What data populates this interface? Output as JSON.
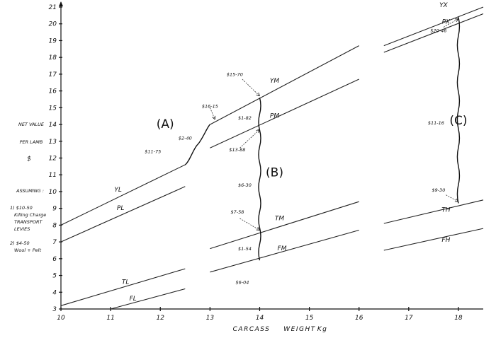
{
  "chart_data": {
    "type": "line",
    "xlabel_parts": [
      "CARCASS",
      "WEIGHT",
      "Kg"
    ],
    "ylabel_lines": [
      "NET VALUE",
      "PER LAMB",
      "$"
    ],
    "xlim": [
      10,
      18.5
    ],
    "ylim": [
      3,
      21
    ],
    "x_ticks": [
      10,
      11,
      12,
      13,
      14,
      15,
      16,
      17,
      18
    ],
    "y_ticks": [
      3,
      4,
      5,
      6,
      7,
      8,
      9,
      10,
      11,
      12,
      13,
      14,
      15,
      16,
      17,
      18,
      19,
      20,
      21
    ],
    "assumptions": {
      "heading": "ASSUMING :",
      "items": [
        [
          "1) $10-50",
          "Killing Charge",
          "TRANSPORT",
          "LEVIES"
        ],
        [
          "2) $4-50",
          "Wool + Pelt"
        ]
      ]
    },
    "series": [
      {
        "name": "YL",
        "x": [
          10,
          12.5
        ],
        "y": [
          8.0,
          11.6
        ]
      },
      {
        "name": "PL",
        "x": [
          10,
          12.5
        ],
        "y": [
          7.0,
          10.3
        ]
      },
      {
        "name": "TL",
        "x": [
          10,
          12.5
        ],
        "y": [
          3.2,
          5.4
        ]
      },
      {
        "name": "FL",
        "x": [
          11,
          12.5
        ],
        "y": [
          3.0,
          4.2
        ]
      },
      {
        "name": "YM",
        "x": [
          13,
          16
        ],
        "y": [
          14.0,
          18.7
        ]
      },
      {
        "name": "PM",
        "x": [
          13,
          16
        ],
        "y": [
          12.6,
          16.7
        ]
      },
      {
        "name": "TM",
        "x": [
          13,
          16
        ],
        "y": [
          6.6,
          9.4
        ]
      },
      {
        "name": "FM",
        "x": [
          13,
          16
        ],
        "y": [
          5.2,
          7.7
        ]
      },
      {
        "name": "YX",
        "x": [
          16.5,
          18.5
        ],
        "y": [
          18.7,
          21.0
        ]
      },
      {
        "name": "PX",
        "x": [
          16.5,
          18.5
        ],
        "y": [
          18.3,
          20.6
        ]
      },
      {
        "name": "TH",
        "x": [
          16.5,
          18.5
        ],
        "y": [
          8.1,
          9.5
        ]
      },
      {
        "name": "FH",
        "x": [
          16.5,
          18.5
        ],
        "y": [
          6.5,
          7.8
        ]
      }
    ],
    "series_label_positions": [
      {
        "name": "YL",
        "x": 11.15,
        "y": 10.0
      },
      {
        "name": "PL",
        "x": 11.2,
        "y": 8.9
      },
      {
        "name": "TL",
        "x": 11.3,
        "y": 4.5
      },
      {
        "name": "FL",
        "x": 11.45,
        "y": 3.5
      },
      {
        "name": "YM",
        "x": 14.3,
        "y": 16.5
      },
      {
        "name": "PM",
        "x": 14.3,
        "y": 14.4
      },
      {
        "name": "TM",
        "x": 14.4,
        "y": 8.3
      },
      {
        "name": "FM",
        "x": 14.45,
        "y": 6.5
      },
      {
        "name": "YX",
        "x": 17.7,
        "y": 21.0
      },
      {
        "name": "PX",
        "x": 17.75,
        "y": 20.0
      },
      {
        "name": "TH",
        "x": 17.75,
        "y": 8.8
      },
      {
        "name": "FH",
        "x": 17.75,
        "y": 7.0
      }
    ],
    "groups": [
      {
        "label": "(A)",
        "x": 12.1,
        "y": 13.8
      },
      {
        "label": "(B)",
        "x": 14.3,
        "y": 10.9
      },
      {
        "label": "(C)",
        "x": 18.0,
        "y": 14.0
      }
    ],
    "annotations": [
      {
        "text": "$16-15",
        "x": 13.0,
        "y": 15.0
      },
      {
        "text": "$15-70",
        "x": 13.5,
        "y": 16.9
      },
      {
        "text": "$1-82",
        "x": 13.7,
        "y": 14.3
      },
      {
        "text": "$2-40",
        "x": 12.5,
        "y": 13.1
      },
      {
        "text": "$11-75",
        "x": 11.85,
        "y": 12.3
      },
      {
        "text": "$13-88",
        "x": 13.55,
        "y": 12.4
      },
      {
        "text": "$6-30",
        "x": 13.7,
        "y": 10.3
      },
      {
        "text": "$7-58",
        "x": 13.55,
        "y": 8.7
      },
      {
        "text": "$1-54",
        "x": 13.7,
        "y": 6.5
      },
      {
        "text": "$6-04",
        "x": 13.65,
        "y": 4.5
      },
      {
        "text": "$20-46",
        "x": 17.6,
        "y": 19.5
      },
      {
        "text": "$11-16",
        "x": 17.55,
        "y": 14.0
      },
      {
        "text": "$9-30",
        "x": 17.6,
        "y": 10.0
      }
    ],
    "connectors": [
      {
        "from": [
          12.5,
          11.6
        ],
        "to": [
          13.0,
          14.0
        ]
      },
      {
        "from": [
          14.0,
          15.6
        ],
        "to": [
          14.0,
          5.9
        ]
      },
      {
        "from": [
          18.0,
          20.4
        ],
        "to": [
          18.0,
          9.3
        ]
      }
    ],
    "pointers": [
      {
        "from": [
          13.0,
          15.0
        ],
        "to": [
          13.1,
          14.3
        ]
      },
      {
        "from": [
          13.65,
          16.7
        ],
        "to": [
          14.0,
          15.7
        ]
      },
      {
        "from": [
          13.6,
          12.6
        ],
        "to": [
          14.0,
          13.7
        ]
      },
      {
        "from": [
          13.6,
          8.4
        ],
        "to": [
          14.0,
          7.7
        ]
      },
      {
        "from": [
          17.7,
          19.8
        ],
        "to": [
          18.0,
          20.3
        ]
      },
      {
        "from": [
          17.75,
          9.8
        ],
        "to": [
          18.0,
          9.4
        ]
      }
    ],
    "grid": false,
    "legend": "none"
  }
}
